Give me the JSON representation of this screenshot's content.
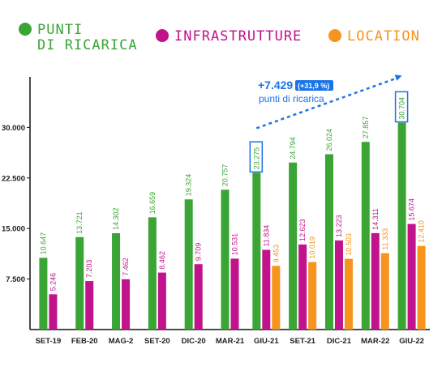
{
  "chart_data": {
    "type": "bar",
    "categories": [
      "SET-19",
      "FEB-20",
      "MAG-2",
      "SET-20",
      "DIC-20",
      "MAR-21",
      "GIU-21",
      "SET-21",
      "DIC-21",
      "MAR-22",
      "GIU-22"
    ],
    "series": [
      {
        "name": "PUNTI DI RICARICA",
        "color": "#3aa535",
        "values": [
          10647,
          13721,
          14302,
          16659,
          19324,
          20757,
          23275,
          24794,
          26024,
          27857,
          30704
        ],
        "labels": [
          "10.647",
          "13.721",
          "14.302",
          "16.659",
          "19.324",
          "20.757",
          "23.275",
          "24.794",
          "26.024",
          "27.857",
          "30.704"
        ]
      },
      {
        "name": "INFRASTRUTTURE",
        "color": "#c0138c",
        "values": [
          5246,
          7203,
          7462,
          8462,
          9709,
          10531,
          11834,
          12623,
          13223,
          14311,
          15674
        ],
        "labels": [
          "5.246",
          "7.203",
          "7.462",
          "8.462",
          "9.709",
          "10.531",
          "11.834",
          "12.623",
          "13.223",
          "14.311",
          "15.674"
        ]
      },
      {
        "name": "LOCATION",
        "color": "#f7941d",
        "values": [
          null,
          null,
          null,
          null,
          null,
          null,
          9453,
          10019,
          10503,
          11333,
          12410
        ],
        "labels": [
          "",
          "",
          "",
          "",
          "",
          "",
          "9.453",
          "10.019",
          "10.503",
          "11.333",
          "12.410"
        ]
      }
    ],
    "yticks": [
      7500,
      15000,
      22500,
      30000
    ],
    "ytick_labels": [
      "7.500",
      "15.000",
      "22.500",
      "30.000"
    ],
    "ylim": [
      0,
      37500
    ],
    "legend": {
      "position": "top",
      "items": [
        {
          "label_lines": [
            "PUNTI",
            "DI RICARICA"
          ],
          "color": "#3aa535"
        },
        {
          "label_lines": [
            "INFRASTRUTTURE"
          ],
          "color": "#c0138c"
        },
        {
          "label_lines": [
            "LOCATION"
          ],
          "color": "#f7941d"
        }
      ]
    },
    "annotation": {
      "value": "+7.429",
      "percent": "(+31,9 %)",
      "text": "punti di ricarica",
      "color": "#1a73e8",
      "from_category": "GIU-21",
      "to_category": "GIU-22"
    },
    "highlighted_labels": [
      "GIU-21",
      "GIU-22"
    ]
  }
}
